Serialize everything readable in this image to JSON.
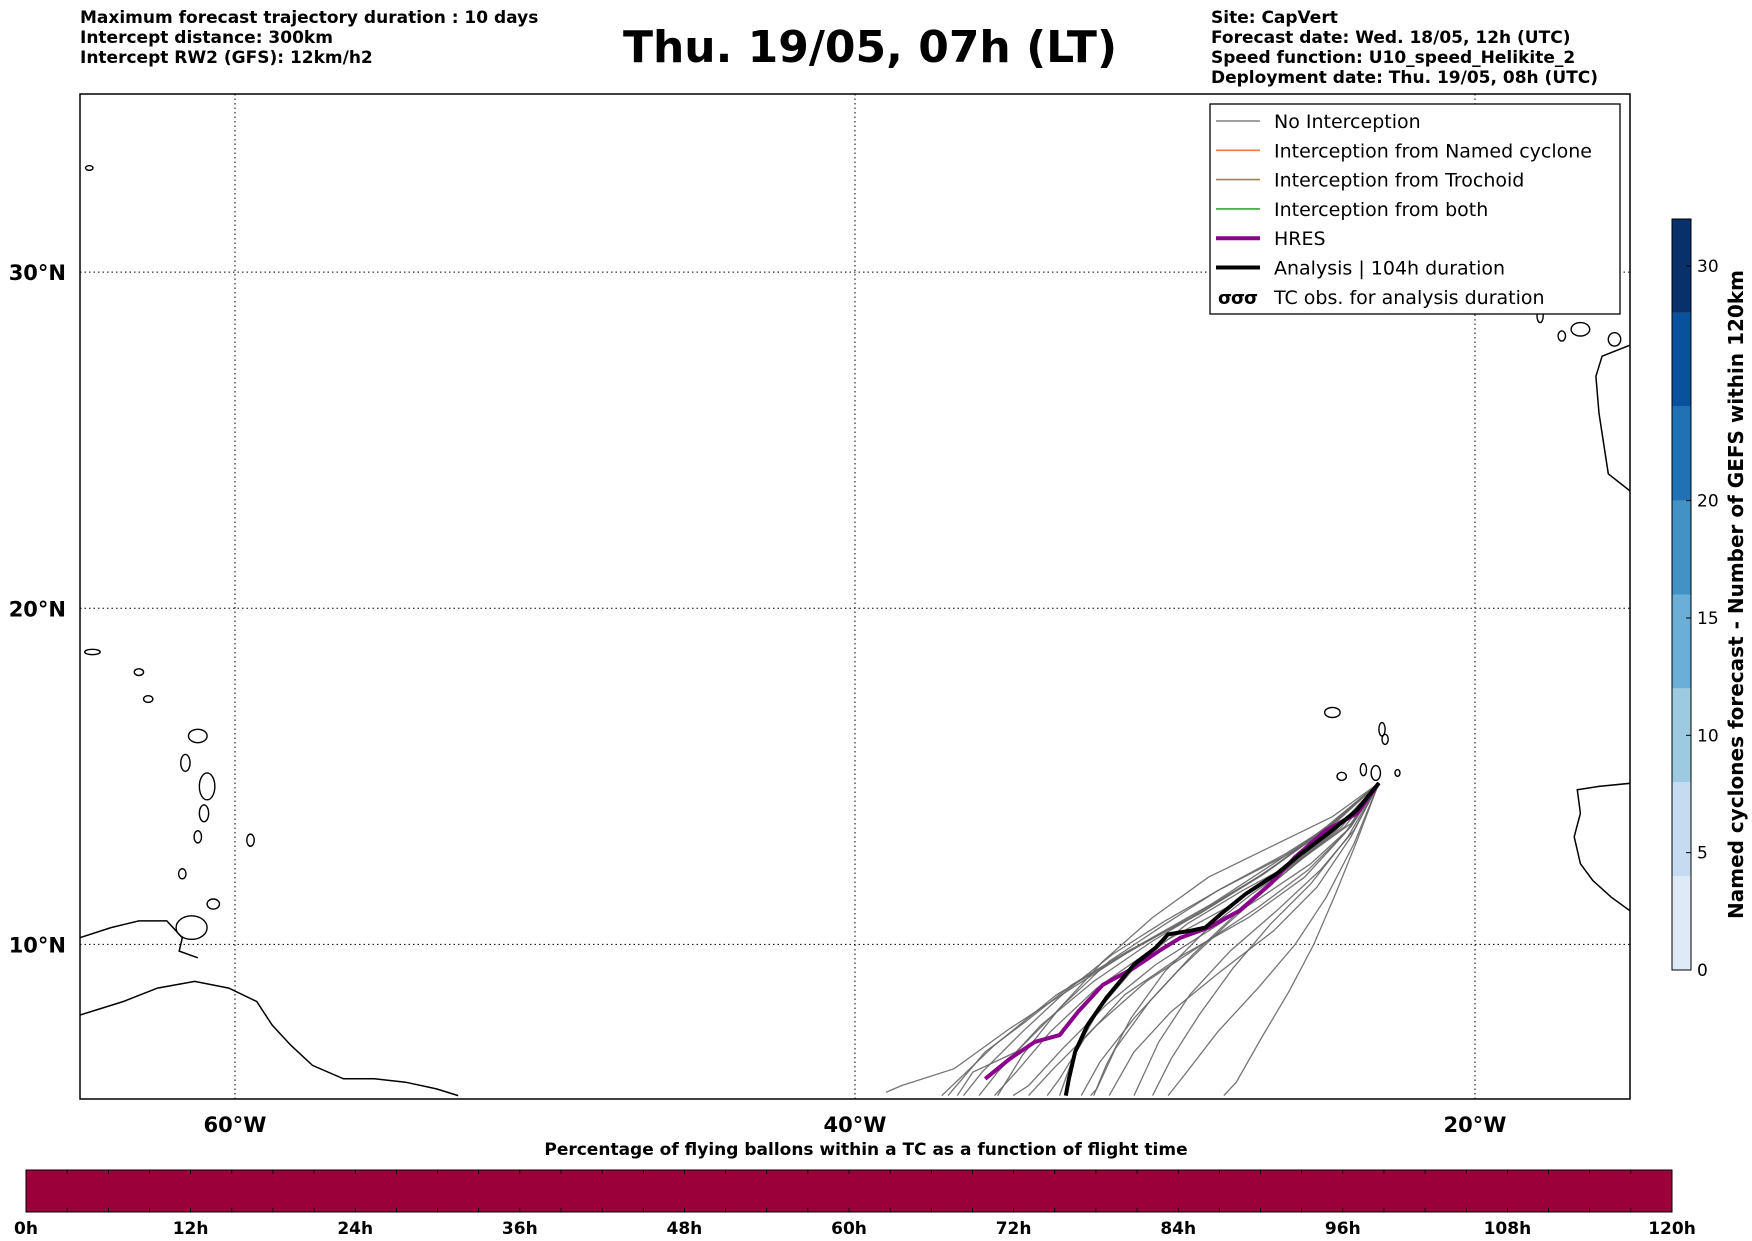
{
  "header": {
    "left": [
      "Maximum forecast trajectory duration : 10 days",
      "Intercept distance: 300km",
      "Intercept RW2 (GFS):  12km/h2"
    ],
    "title": "Thu. 19/05, 07h (LT)",
    "right": [
      "Site: CapVert",
      "Forecast date: Wed. 18/05, 12h (UTC)",
      "Speed function: U10_speed_Helikite_2",
      "Deployment date: Thu. 19/05, 08h (UTC)"
    ]
  },
  "chart_data": [
    {
      "type": "line",
      "title": "",
      "axes": {
        "x": {
          "unit": "longitude",
          "ticks": [
            -60,
            -40,
            -20
          ],
          "tick_labels": [
            "60°W",
            "40°W",
            "20°W"
          ],
          "lim": [
            -65,
            -15
          ]
        },
        "y": {
          "unit": "latitude",
          "ticks": [
            10,
            20,
            30
          ],
          "tick_labels": [
            "10°N",
            "20°N",
            "30°N"
          ],
          "lim": [
            5.4,
            35.3
          ]
        },
        "grid": true
      },
      "legend": {
        "placement": "top-right",
        "entries": [
          {
            "label": "No Interception",
            "color": "#808080",
            "style": "thin"
          },
          {
            "label": "Interception from Named cyclone",
            "color": "#f07a4a",
            "style": "thin"
          },
          {
            "label": "Interception from Trochoid",
            "color": "#9a8a3a",
            "style": "thin"
          },
          {
            "label": "Interception from both",
            "color": "#3aa43a",
            "style": "thin"
          },
          {
            "label": "HRES",
            "color": "#8b008b",
            "style": "thick"
          },
          {
            "label": "Analysis | 104h duration",
            "color": "#000000",
            "style": "thick"
          },
          {
            "label": "TC obs. for analysis duration",
            "color": "#000000",
            "style": "symbol"
          }
        ]
      },
      "series": [
        {
          "name": "HRES",
          "color": "#8b008b",
          "points": [
            [
              -23.1,
              14.8
            ],
            [
              -23.8,
              13.9
            ],
            [
              -24.8,
              13.4
            ],
            [
              -25.8,
              12.6
            ],
            [
              -26.6,
              11.8
            ],
            [
              -27.6,
              11.0
            ],
            [
              -28.6,
              10.5
            ],
            [
              -29.5,
              10.2
            ],
            [
              -30.2,
              9.8
            ],
            [
              -31.0,
              9.3
            ],
            [
              -32.0,
              8.8
            ],
            [
              -32.8,
              8.0
            ],
            [
              -33.4,
              7.3
            ],
            [
              -34.2,
              7.1
            ],
            [
              -35.0,
              6.6
            ],
            [
              -35.8,
              6.0
            ]
          ]
        },
        {
          "name": "Analysis | 104h duration",
          "color": "#000000",
          "points": [
            [
              -23.1,
              14.8
            ],
            [
              -23.8,
              14.0
            ],
            [
              -24.6,
              13.4
            ],
            [
              -25.6,
              12.7
            ],
            [
              -26.4,
              12.1
            ],
            [
              -27.4,
              11.5
            ],
            [
              -28.2,
              10.9
            ],
            [
              -28.7,
              10.5
            ],
            [
              -29.2,
              10.4
            ],
            [
              -29.9,
              10.3
            ],
            [
              -30.3,
              9.9
            ],
            [
              -31.0,
              9.4
            ],
            [
              -31.9,
              8.4
            ],
            [
              -32.5,
              7.6
            ],
            [
              -32.9,
              6.8
            ],
            [
              -33.1,
              6.0
            ],
            [
              -33.2,
              5.5
            ]
          ]
        }
      ],
      "ensemble": {
        "name": "No Interception",
        "color": "#666666",
        "members": [
          [
            [
              -23.1,
              14.8
            ],
            [
              -24.6,
              13.6
            ],
            [
              -26.5,
              12.4
            ],
            [
              -28.5,
              11.2
            ],
            [
              -30.8,
              10.0
            ],
            [
              -33.0,
              8.7
            ],
            [
              -35.0,
              7.5
            ],
            [
              -36.8,
              6.3
            ],
            [
              -38.5,
              5.8
            ],
            [
              -39.0,
              5.6
            ]
          ],
          [
            [
              -23.1,
              14.8
            ],
            [
              -25.0,
              13.3
            ],
            [
              -27.0,
              12.0
            ],
            [
              -29.2,
              10.8
            ],
            [
              -31.5,
              9.6
            ],
            [
              -33.5,
              8.5
            ],
            [
              -35.5,
              7.0
            ],
            [
              -37.2,
              5.5
            ]
          ],
          [
            [
              -23.1,
              14.8
            ],
            [
              -24.8,
              13.5
            ],
            [
              -26.8,
              12.1
            ],
            [
              -28.9,
              10.9
            ],
            [
              -31.2,
              9.8
            ],
            [
              -33.0,
              8.8
            ],
            [
              -34.5,
              7.7
            ],
            [
              -35.8,
              6.8
            ],
            [
              -37.0,
              5.5
            ]
          ],
          [
            [
              -23.1,
              14.8
            ],
            [
              -24.4,
              13.5
            ],
            [
              -26.0,
              12.3
            ],
            [
              -28.0,
              11.1
            ],
            [
              -30.2,
              10.0
            ],
            [
              -32.2,
              8.7
            ],
            [
              -33.7,
              7.4
            ],
            [
              -34.8,
              6.2
            ],
            [
              -35.5,
              5.5
            ]
          ],
          [
            [
              -23.1,
              14.8
            ],
            [
              -24.2,
              13.3
            ],
            [
              -25.5,
              12.0
            ],
            [
              -27.3,
              10.8
            ],
            [
              -29.4,
              9.7
            ],
            [
              -31.3,
              8.5
            ],
            [
              -32.6,
              7.2
            ],
            [
              -33.4,
              6.0
            ],
            [
              -33.8,
              5.5
            ]
          ],
          [
            [
              -23.1,
              14.8
            ],
            [
              -24.0,
              13.2
            ],
            [
              -25.1,
              11.7
            ],
            [
              -26.5,
              10.4
            ],
            [
              -28.2,
              9.2
            ],
            [
              -29.8,
              8.0
            ],
            [
              -31.0,
              6.8
            ],
            [
              -31.8,
              5.5
            ]
          ],
          [
            [
              -23.1,
              14.8
            ],
            [
              -23.9,
              13.0
            ],
            [
              -24.8,
              11.4
            ],
            [
              -25.8,
              10.0
            ],
            [
              -27.0,
              8.7
            ],
            [
              -28.3,
              7.4
            ],
            [
              -29.3,
              6.2
            ],
            [
              -29.9,
              5.5
            ]
          ],
          [
            [
              -23.1,
              14.8
            ],
            [
              -23.8,
              13.1
            ],
            [
              -24.5,
              11.5
            ],
            [
              -25.2,
              10.0
            ],
            [
              -26.0,
              8.6
            ],
            [
              -26.9,
              7.2
            ],
            [
              -27.7,
              5.9
            ],
            [
              -28.1,
              5.5
            ]
          ],
          [
            [
              -23.1,
              14.8
            ],
            [
              -24.1,
              13.4
            ],
            [
              -25.4,
              12.2
            ],
            [
              -27.0,
              11.1
            ],
            [
              -28.8,
              10.0
            ],
            [
              -30.6,
              8.9
            ],
            [
              -32.2,
              7.6
            ],
            [
              -33.6,
              6.3
            ],
            [
              -34.4,
              5.5
            ]
          ],
          [
            [
              -23.1,
              14.8
            ],
            [
              -24.3,
              13.6
            ],
            [
              -26.2,
              12.6
            ],
            [
              -28.3,
              11.6
            ],
            [
              -30.0,
              10.6
            ],
            [
              -31.8,
              9.5
            ],
            [
              -33.4,
              8.1
            ],
            [
              -34.6,
              6.7
            ],
            [
              -35.4,
              5.5
            ]
          ],
          [
            [
              -23.1,
              14.8
            ],
            [
              -24.5,
              13.4
            ],
            [
              -26.3,
              12.0
            ],
            [
              -28.0,
              10.6
            ],
            [
              -29.6,
              9.2
            ],
            [
              -31.0,
              7.8
            ],
            [
              -32.1,
              6.5
            ],
            [
              -32.7,
              5.5
            ]
          ],
          [
            [
              -23.1,
              14.8
            ],
            [
              -24.0,
              13.5
            ],
            [
              -25.3,
              12.4
            ],
            [
              -26.9,
              11.4
            ],
            [
              -28.6,
              10.4
            ],
            [
              -30.3,
              9.4
            ],
            [
              -31.9,
              8.2
            ],
            [
              -33.3,
              6.9
            ],
            [
              -34.4,
              5.8
            ],
            [
              -34.9,
              5.5
            ]
          ],
          [
            [
              -23.1,
              14.8
            ],
            [
              -23.9,
              13.4
            ],
            [
              -25.0,
              12.2
            ],
            [
              -26.4,
              11.0
            ],
            [
              -27.9,
              9.8
            ],
            [
              -29.2,
              8.5
            ],
            [
              -30.2,
              7.1
            ],
            [
              -30.8,
              5.9
            ],
            [
              -31.0,
              5.5
            ]
          ],
          [
            [
              -23.1,
              14.8
            ],
            [
              -24.6,
              13.8
            ],
            [
              -26.6,
              12.9
            ],
            [
              -28.6,
              12.0
            ],
            [
              -30.4,
              10.8
            ],
            [
              -32.0,
              9.5
            ],
            [
              -33.5,
              8.0
            ],
            [
              -34.8,
              6.8
            ],
            [
              -36.2,
              6.2
            ],
            [
              -36.7,
              5.5
            ]
          ],
          [
            [
              -23.1,
              14.8
            ],
            [
              -24.2,
              13.5
            ],
            [
              -25.7,
              12.5
            ],
            [
              -27.5,
              11.6
            ],
            [
              -29.3,
              10.6
            ],
            [
              -30.9,
              9.4
            ],
            [
              -32.1,
              8.1
            ],
            [
              -32.9,
              6.8
            ],
            [
              -33.4,
              5.5
            ]
          ],
          [
            [
              -23.1,
              14.8
            ],
            [
              -24.1,
              13.2
            ],
            [
              -25.3,
              11.8
            ],
            [
              -26.6,
              10.6
            ],
            [
              -27.8,
              9.3
            ],
            [
              -28.9,
              7.9
            ],
            [
              -29.8,
              6.6
            ],
            [
              -30.4,
              5.5
            ]
          ],
          [
            [
              -23.1,
              14.8
            ],
            [
              -24.4,
              13.7
            ],
            [
              -26.1,
              12.7
            ],
            [
              -28.1,
              11.7
            ],
            [
              -30.0,
              10.7
            ],
            [
              -31.7,
              9.7
            ],
            [
              -33.2,
              8.6
            ],
            [
              -34.6,
              7.4
            ],
            [
              -35.9,
              6.2
            ],
            [
              -36.5,
              5.5
            ]
          ],
          [
            [
              -23.1,
              14.8
            ],
            [
              -24.0,
              13.6
            ],
            [
              -25.5,
              12.6
            ],
            [
              -27.2,
              11.5
            ],
            [
              -28.7,
              10.4
            ],
            [
              -30.0,
              9.2
            ],
            [
              -31.1,
              7.8
            ],
            [
              -31.9,
              6.4
            ],
            [
              -32.3,
              5.5
            ]
          ],
          [
            [
              -23.1,
              14.8
            ],
            [
              -24.7,
              13.5
            ],
            [
              -26.5,
              12.3
            ],
            [
              -28.4,
              11.2
            ],
            [
              -30.4,
              10.1
            ],
            [
              -32.3,
              8.9
            ],
            [
              -34.0,
              7.6
            ],
            [
              -35.4,
              6.2
            ],
            [
              -36.0,
              5.5
            ]
          ],
          [
            [
              -23.1,
              14.8
            ],
            [
              -24.3,
              13.5
            ],
            [
              -25.9,
              12.3
            ],
            [
              -27.6,
              11.0
            ],
            [
              -29.1,
              9.7
            ],
            [
              -30.5,
              8.3
            ],
            [
              -31.6,
              6.9
            ],
            [
              -32.2,
              5.7
            ],
            [
              -32.4,
              5.5
            ]
          ]
        ]
      },
      "coastline_color": "#000000"
    },
    {
      "type": "heatmap",
      "orientation": "vertical",
      "label": "Named cyclones forecast - Number of GEFS within 120km",
      "lim": [
        0,
        32
      ],
      "ticks": [
        0,
        5,
        10,
        15,
        20,
        30
      ],
      "tick_labels": [
        "0",
        "5",
        "10",
        "15",
        "20",
        "30"
      ],
      "colors": [
        "#deebf7",
        "#c6dbef",
        "#9ecae1",
        "#6baed6",
        "#4292c6",
        "#2171b5",
        "#08519c",
        "#08306b"
      ]
    },
    {
      "type": "heatmap",
      "orientation": "horizontal",
      "label": "Percentage of flying ballons within a TC as a function of flight time",
      "x_ticks": [
        "0h",
        "12h",
        "24h",
        "36h",
        "48h",
        "60h",
        "72h",
        "84h",
        "96h",
        "108h",
        "120h"
      ],
      "hours": [
        0,
        120
      ],
      "values": [
        0,
        0,
        0,
        0,
        0,
        0,
        0,
        0,
        0,
        0,
        0,
        0,
        0,
        0,
        0,
        0,
        0,
        0,
        0,
        0,
        0,
        0,
        0,
        0,
        0,
        0,
        0,
        0,
        0,
        0,
        0,
        0,
        0,
        0,
        0,
        0,
        0,
        0,
        0,
        0
      ],
      "color": "#9c003a"
    }
  ]
}
